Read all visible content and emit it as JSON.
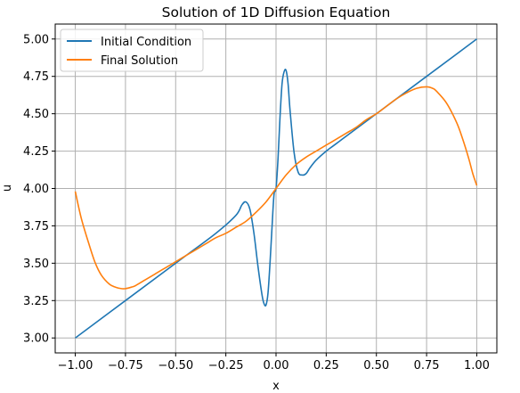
{
  "chart_data": {
    "type": "line",
    "title": "Solution of 1D Diffusion Equation",
    "xlabel": "x",
    "ylabel": "u",
    "xlim": [
      -1.1,
      1.1
    ],
    "ylim": [
      2.9,
      5.1
    ],
    "xticks": [
      -1.0,
      -0.75,
      -0.5,
      -0.25,
      0.0,
      0.25,
      0.5,
      0.75,
      1.0
    ],
    "xtick_labels": [
      "−1.00",
      "−0.75",
      "−0.50",
      "−0.25",
      "0.00",
      "0.25",
      "0.50",
      "0.75",
      "1.00"
    ],
    "yticks": [
      3.0,
      3.25,
      3.5,
      3.75,
      4.0,
      4.25,
      4.5,
      4.75,
      5.0
    ],
    "ytick_labels": [
      "3.00",
      "3.25",
      "3.50",
      "3.75",
      "4.00",
      "4.25",
      "4.50",
      "4.75",
      "5.00"
    ],
    "grid": true,
    "legend_position": "top-left",
    "series": [
      {
        "name": "Initial Condition",
        "color": "#1f77b4",
        "x": [
          -1.0,
          -0.5,
          -0.3,
          -0.2,
          -0.17,
          -0.15,
          -0.13,
          -0.11,
          -0.09,
          -0.07,
          -0.06,
          -0.05,
          -0.04,
          -0.03,
          -0.02,
          -0.01,
          0.0,
          0.01,
          0.02,
          0.03,
          0.04,
          0.05,
          0.06,
          0.07,
          0.09,
          0.11,
          0.13,
          0.15,
          0.17,
          0.2,
          0.25,
          0.3,
          0.5,
          1.0
        ],
        "y": [
          3.0,
          3.5,
          3.7,
          3.82,
          3.89,
          3.91,
          3.86,
          3.7,
          3.48,
          3.29,
          3.23,
          3.22,
          3.3,
          3.5,
          3.74,
          3.96,
          4.0,
          4.2,
          4.48,
          4.7,
          4.78,
          4.79,
          4.7,
          4.52,
          4.24,
          4.11,
          4.09,
          4.1,
          4.14,
          4.19,
          4.25,
          4.3,
          4.5,
          5.0
        ]
      },
      {
        "name": "Final Solution",
        "color": "#ff7f0e",
        "x": [
          -1.0,
          -0.97,
          -0.93,
          -0.9,
          -0.87,
          -0.83,
          -0.8,
          -0.77,
          -0.75,
          -0.72,
          -0.7,
          -0.65,
          -0.6,
          -0.55,
          -0.5,
          -0.45,
          -0.4,
          -0.35,
          -0.3,
          -0.25,
          -0.2,
          -0.15,
          -0.1,
          -0.05,
          0.0,
          0.05,
          0.1,
          0.15,
          0.2,
          0.25,
          0.3,
          0.35,
          0.4,
          0.45,
          0.5,
          0.55,
          0.6,
          0.65,
          0.7,
          0.75,
          0.78,
          0.8,
          0.85,
          0.9,
          0.93,
          0.96,
          0.98,
          1.0
        ],
        "y": [
          3.98,
          3.8,
          3.62,
          3.5,
          3.42,
          3.36,
          3.34,
          3.33,
          3.33,
          3.34,
          3.35,
          3.39,
          3.43,
          3.47,
          3.51,
          3.55,
          3.59,
          3.63,
          3.67,
          3.7,
          3.74,
          3.78,
          3.84,
          3.91,
          4.0,
          4.09,
          4.16,
          4.21,
          4.25,
          4.29,
          4.33,
          4.37,
          4.41,
          4.46,
          4.5,
          4.55,
          4.6,
          4.64,
          4.67,
          4.68,
          4.67,
          4.65,
          4.57,
          4.44,
          4.33,
          4.2,
          4.1,
          4.02
        ]
      }
    ]
  }
}
